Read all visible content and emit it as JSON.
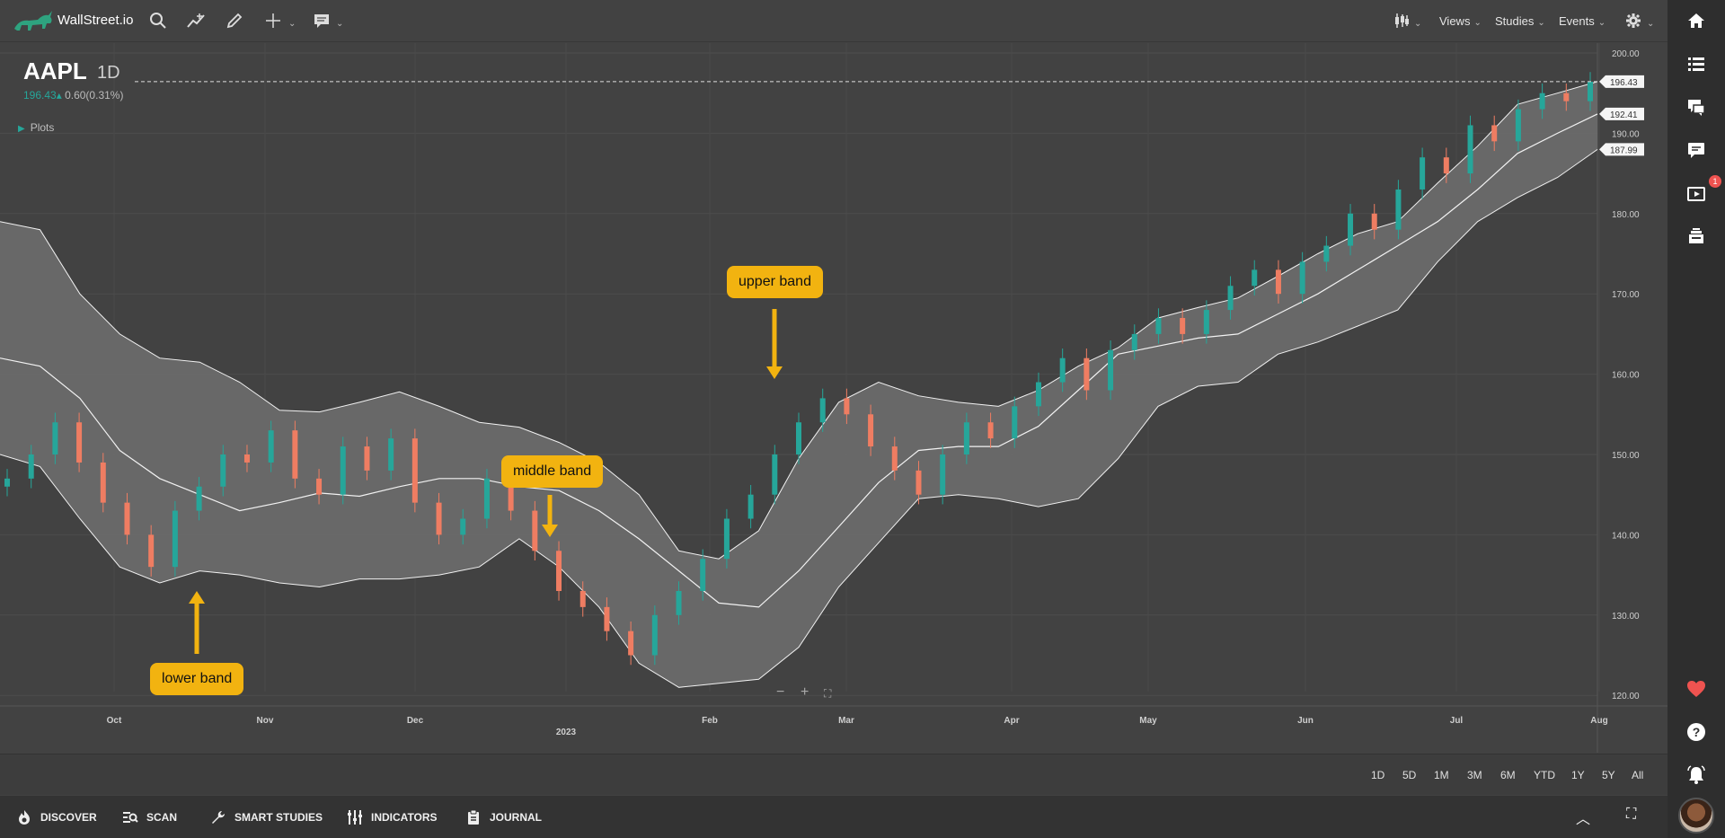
{
  "app": {
    "brand": "WallStreet.io",
    "accent": "#26a69a",
    "down_color": "#ef7d62"
  },
  "toolbar": {
    "icons": [
      "bull-logo",
      "search-icon",
      "trend-line-icon",
      "pencil-icon",
      "crosshair-icon",
      "comment-icon"
    ],
    "menus": [
      "Views",
      "Studies",
      "Events"
    ]
  },
  "symbol": {
    "ticker": "AAPL",
    "interval": "1D",
    "price": "196.43",
    "change": "0.60(0.31%)",
    "plots_label": "Plots"
  },
  "annotations": {
    "upper": "upper band",
    "middle": "middle band",
    "lower": "lower band"
  },
  "chart_data": {
    "type": "candlestick",
    "indicator": "Bollinger Bands",
    "y_ticks": [
      "200.00",
      "190.00",
      "180.00",
      "170.00",
      "160.00",
      "150.00",
      "140.00",
      "130.00",
      "120.00"
    ],
    "ylim": [
      119,
      201
    ],
    "x_ticks": [
      "Oct",
      "Nov",
      "Dec",
      "2023",
      "Feb",
      "Mar",
      "Apr",
      "May",
      "Jun",
      "Jul",
      "Aug"
    ],
    "last_price": 196.43,
    "upper_band_last": 196.43,
    "middle_band_last": 192.41,
    "lower_band_last": 187.99,
    "price_labels": [
      "196.43",
      "192.41",
      "187.99"
    ],
    "upper_band": [
      179.0,
      178.0,
      170.0,
      165.0,
      162.0,
      161.5,
      159.0,
      155.5,
      155.3,
      156.5,
      157.8,
      156.0,
      154.0,
      153.4,
      151.5,
      149.0,
      145.0,
      138.0,
      137.0,
      140.5,
      149.5,
      156.5,
      159.0,
      157.3,
      156.5,
      156.0,
      158.0,
      161.0,
      163.3,
      167.0,
      168.3,
      169.5,
      172.2,
      175.0,
      177.5,
      179.0,
      183.8,
      188.4,
      193.6,
      195.0,
      196.43
    ],
    "middle_band": [
      162.0,
      161.0,
      157.0,
      150.5,
      147.0,
      145.0,
      143.0,
      144.0,
      145.2,
      144.8,
      146.0,
      147.0,
      147.0,
      146.0,
      145.5,
      143.0,
      139.5,
      135.5,
      131.5,
      131.0,
      135.5,
      141.0,
      146.5,
      150.5,
      151.0,
      151.0,
      153.5,
      158.0,
      162.5,
      163.5,
      164.5,
      165.0,
      167.5,
      170.0,
      173.0,
      176.0,
      179.0,
      183.0,
      187.5,
      190.0,
      192.41
    ],
    "lower_band": [
      150.0,
      148.5,
      142.0,
      136.0,
      134.0,
      135.5,
      135.0,
      134.0,
      133.5,
      134.5,
      134.5,
      135.0,
      136.0,
      139.5,
      136.0,
      131.0,
      124.0,
      121.0,
      121.5,
      122.0,
      126.0,
      133.5,
      139.0,
      144.5,
      145.0,
      144.5,
      143.5,
      144.5,
      149.5,
      156.0,
      158.5,
      159.0,
      162.5,
      164.0,
      166.0,
      168.0,
      174.0,
      179.0,
      182.0,
      184.5,
      187.99
    ],
    "candle_range": {
      "start": 147,
      "points": [
        147,
        150,
        154,
        149,
        144,
        140,
        136,
        143,
        146,
        150,
        149,
        153,
        147,
        145,
        151,
        148,
        152,
        144,
        140,
        142,
        147,
        143,
        138,
        133,
        131,
        128,
        125,
        130,
        133,
        137,
        142,
        145,
        150,
        154,
        157,
        155,
        151,
        148,
        145,
        150,
        154,
        152,
        156,
        159,
        162,
        158,
        163,
        165,
        167,
        165,
        168,
        171,
        173,
        170,
        174,
        176,
        180,
        178,
        183,
        187,
        185,
        191,
        189,
        193,
        195,
        194,
        196.43
      ]
    }
  },
  "ranges": [
    "1D",
    "5D",
    "1M",
    "3M",
    "6M",
    "YTD",
    "1Y",
    "5Y",
    "All"
  ],
  "bottom_nav": [
    {
      "label": "DISCOVER"
    },
    {
      "label": "SCAN"
    },
    {
      "label": "SMART STUDIES"
    },
    {
      "label": "INDICATORS"
    },
    {
      "label": "JOURNAL"
    }
  ],
  "rail": {
    "notification_count": "1"
  }
}
